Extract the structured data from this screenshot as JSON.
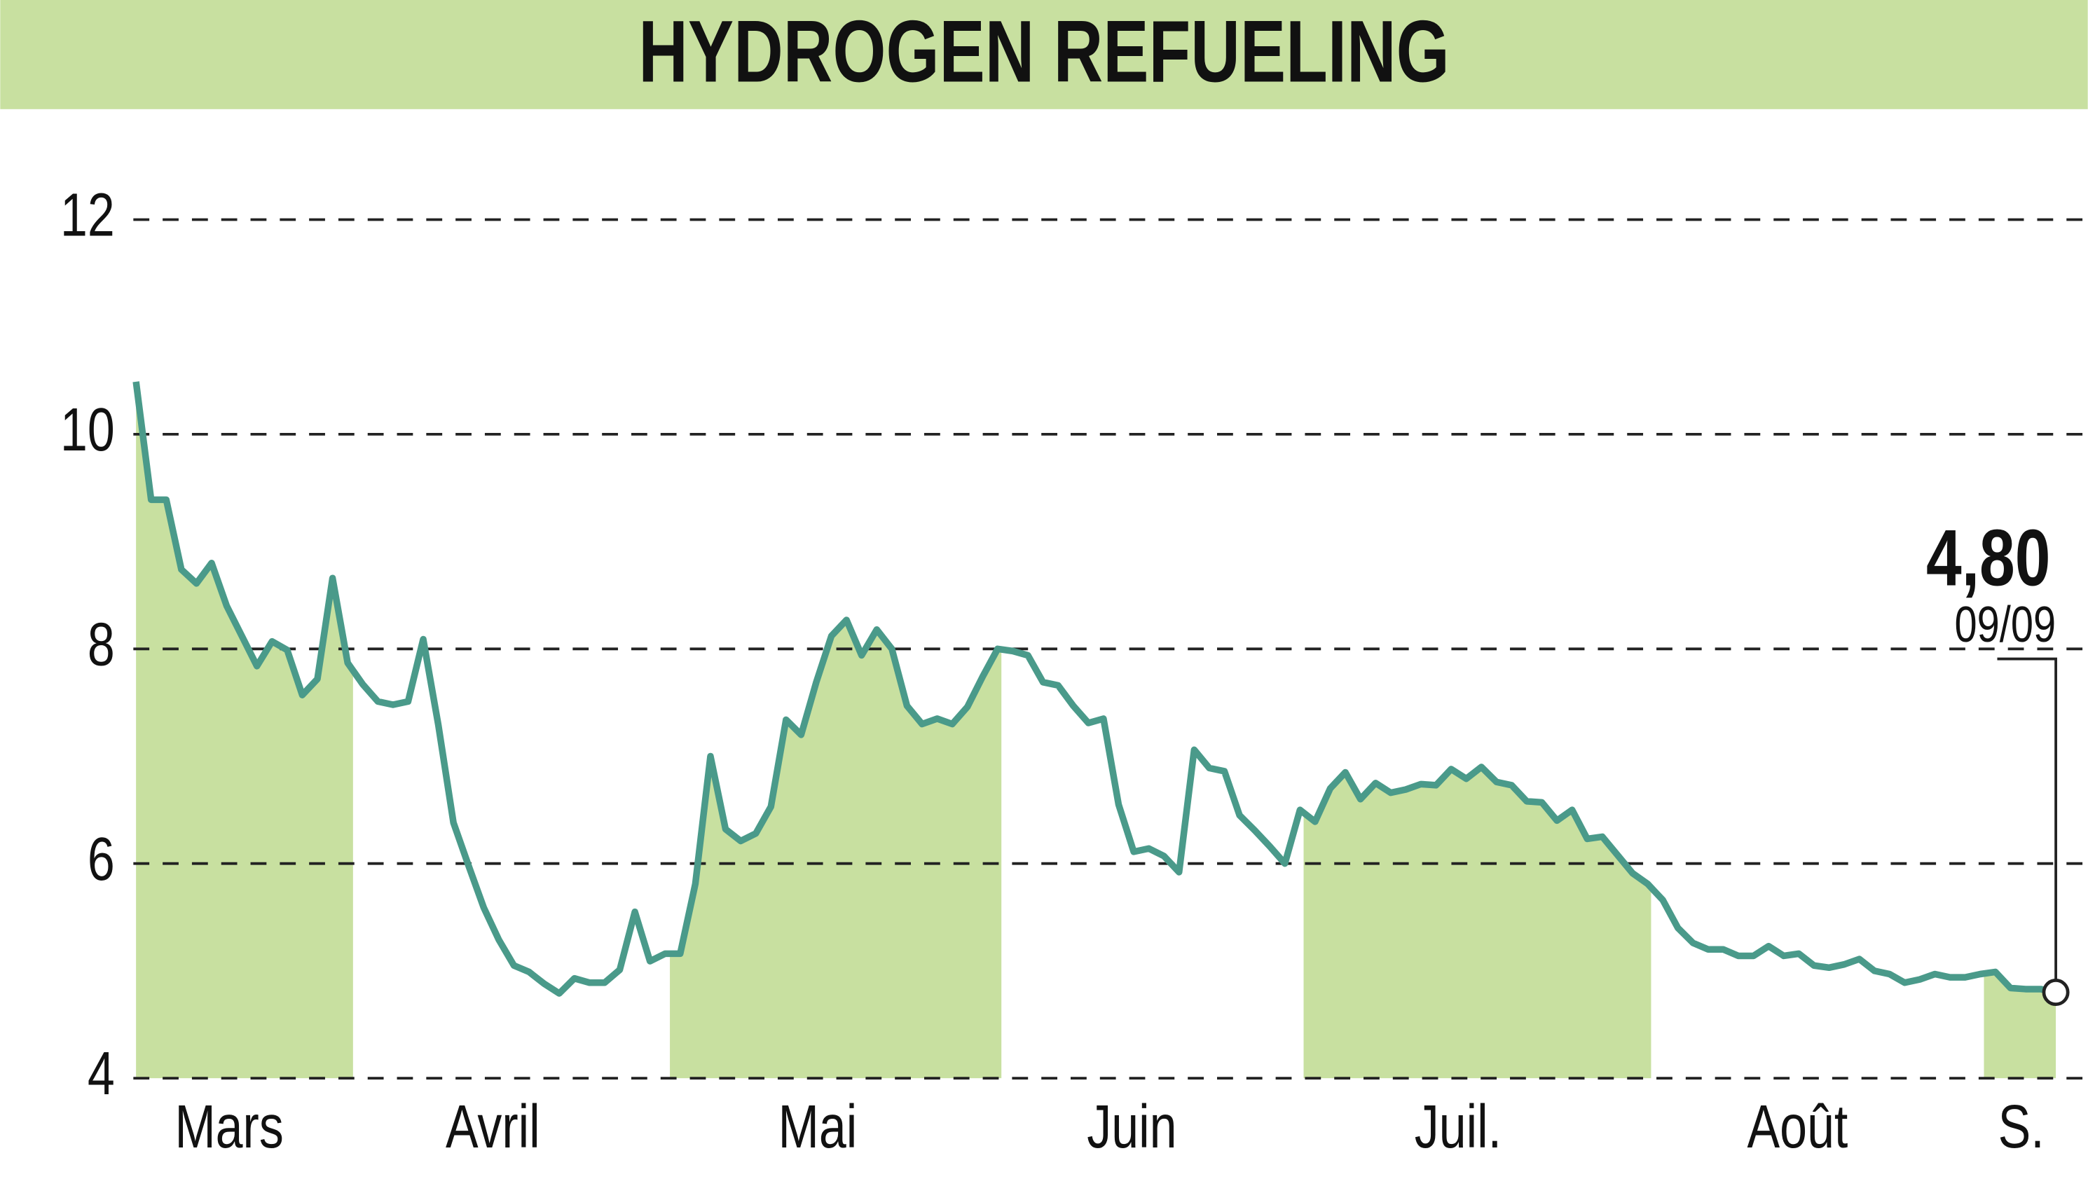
{
  "chart_data": {
    "type": "line",
    "title": "HYDROGEN REFUELING",
    "months": [
      "Mars",
      "Avril",
      "Mai",
      "Juin",
      "Juil.",
      "Août",
      "S."
    ],
    "values": [
      10.49,
      9.39,
      9.39,
      8.74,
      8.61,
      8.8,
      8.4,
      8.12,
      7.84,
      8.07,
      7.99,
      7.57,
      7.72,
      8.66,
      7.87,
      7.67,
      7.51,
      7.48,
      7.51,
      8.09,
      7.29,
      6.38,
      5.98,
      5.59,
      5.29,
      5.05,
      4.99,
      4.88,
      4.79,
      4.93,
      4.89,
      4.89,
      5.01,
      5.55,
      5.09,
      5.16,
      5.16,
      5.81,
      7.0,
      6.32,
      6.21,
      6.28,
      6.53,
      7.34,
      7.2,
      7.69,
      8.12,
      8.27,
      7.94,
      8.18,
      8.0,
      7.47,
      7.3,
      7.35,
      7.3,
      7.46,
      7.74,
      8.0,
      7.98,
      7.94,
      7.69,
      7.66,
      7.47,
      7.31,
      7.35,
      6.55,
      6.11,
      6.14,
      6.07,
      5.92,
      7.06,
      6.89,
      6.86,
      6.45,
      6.31,
      6.16,
      6.0,
      6.5,
      6.39,
      6.7,
      6.85,
      6.6,
      6.75,
      6.66,
      6.69,
      6.74,
      6.73,
      6.88,
      6.79,
      6.9,
      6.76,
      6.73,
      6.58,
      6.57,
      6.4,
      6.5,
      6.23,
      6.25,
      6.08,
      5.91,
      5.81,
      5.66,
      5.4,
      5.26,
      5.2,
      5.2,
      5.14,
      5.14,
      5.23,
      5.14,
      5.16,
      5.05,
      5.03,
      5.06,
      5.11,
      5.0,
      4.97,
      4.89,
      4.92,
      4.97,
      4.94,
      4.94,
      4.97,
      4.99,
      4.84,
      4.83,
      4.83,
      4.8
    ],
    "color": "#4a9a8a",
    "band_color": "#c8e0a0",
    "ylim": [
      4,
      12
    ],
    "yticks": [
      4,
      6,
      8,
      10,
      12
    ],
    "grid": true,
    "last_value_label": "4,80",
    "last_date": "09/09"
  }
}
